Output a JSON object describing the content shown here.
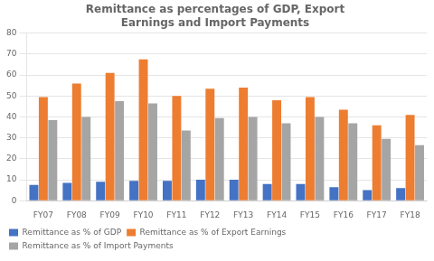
{
  "chart_data": {
    "type": "bar",
    "title": "Remittance as percentages of GDP, Export\nEarnings and Import Payments",
    "categories": [
      "FY07",
      "FY08",
      "FY09",
      "FY10",
      "FY11",
      "FY12",
      "FY13",
      "FY14",
      "FY15",
      "FY16",
      "FY17",
      "FY18"
    ],
    "series": [
      {
        "name": "Remittance as % of GDP",
        "color": "#4472C4",
        "values": [
          7.5,
          8.5,
          9.0,
          9.5,
          9.5,
          10.0,
          10.0,
          8.0,
          8.0,
          6.5,
          5.0,
          6.0
        ]
      },
      {
        "name": "Remittance as % of Export Earnings",
        "color": "#ED7D31",
        "values": [
          49.5,
          56.0,
          61.0,
          67.5,
          50.0,
          53.5,
          54.0,
          48.0,
          49.5,
          43.5,
          36.0,
          41.0
        ]
      },
      {
        "name": "Remittance as % of Import Payments",
        "color": "#A5A5A5",
        "values": [
          38.5,
          40.0,
          47.5,
          46.5,
          33.5,
          39.5,
          40.0,
          37.0,
          40.0,
          37.0,
          29.5,
          26.5
        ]
      }
    ],
    "ylim": [
      0,
      80
    ],
    "yticks": [
      0,
      10,
      20,
      30,
      40,
      50,
      60,
      70,
      80
    ],
    "grid": true,
    "legend": "bottom"
  }
}
